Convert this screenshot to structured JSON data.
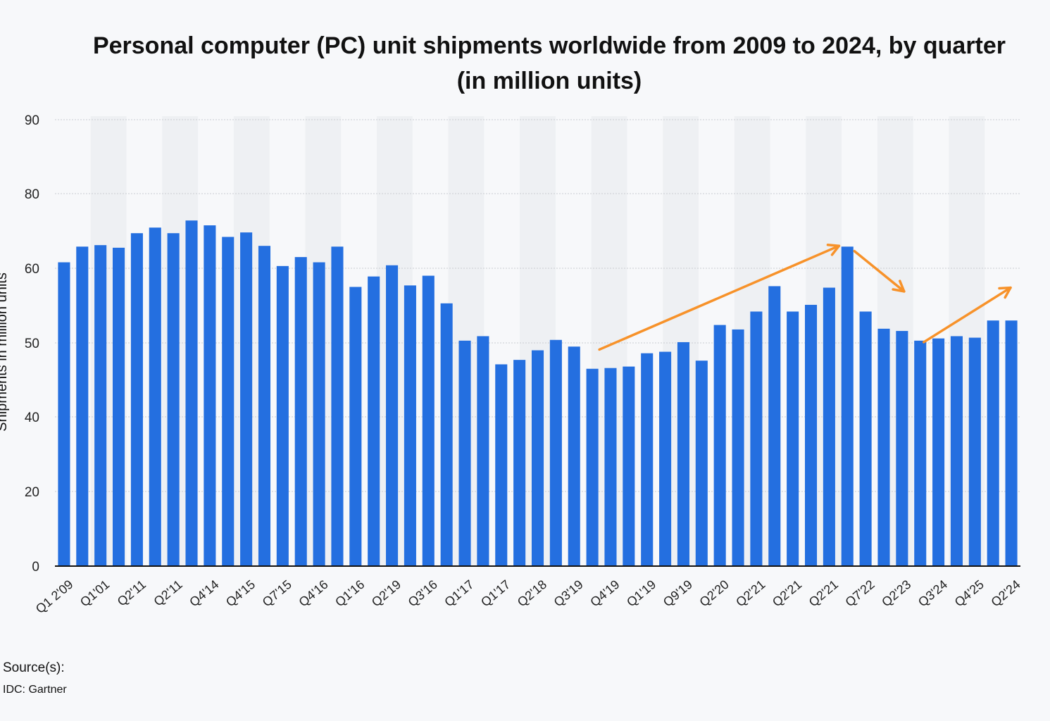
{
  "chart_data": {
    "type": "bar",
    "title": "Personal computer (PC) unit shipments worldwide from 2009 to 2024, by quarter (in million units)",
    "title_lines": [
      "Personal computer (PC) unit shipments worldwide from 2009 to 2024, by quarter",
      "(in million units)"
    ],
    "ylabel": "Shipments in million units",
    "xlabel": "",
    "y_ticks": [
      0,
      20,
      40,
      50,
      60,
      80,
      90
    ],
    "x_tick_labels": [
      "Q1 2'09",
      "Q1'01",
      "Q2'11",
      "Q2'11",
      "Q4'14",
      "Q4'15",
      "Q7'15",
      "Q4'16",
      "Q1'16",
      "Q2'19",
      "Q3'16",
      "Q1'17",
      "Q1'17",
      "Q2'18",
      "Q3'19",
      "Q4'19",
      "Q1'19",
      "Q9'19",
      "Q2'20",
      "Q2'21",
      "Q2'21",
      "Q2'21",
      "Q7'22",
      "Q2'23",
      "Q3'24",
      "Q4'25",
      "Q2'24"
    ],
    "values": [
      61.6,
      65.8,
      66.2,
      65.5,
      69.4,
      70.9,
      69.4,
      72.8,
      71.5,
      68.4,
      69.6,
      66.0,
      60.6,
      63.0,
      61.6,
      65.8,
      57.5,
      58.9,
      60.8,
      57.7,
      59.0,
      55.3,
      50.3,
      50.9,
      47.1,
      47.7,
      49.0,
      50.4,
      49.5,
      46.5,
      46.6,
      46.8,
      48.6,
      48.8,
      50.1,
      47.6,
      52.4,
      51.8,
      54.2,
      57.6,
      54.2,
      55.1,
      57.4,
      65.8,
      54.2,
      51.9,
      51.6,
      50.3,
      50.6,
      50.9,
      50.7,
      53.0,
      53.0
    ],
    "ylim": [
      0,
      90
    ],
    "grid": true,
    "legend": "none",
    "colors": {
      "bar": "#246fe0",
      "annotation": "#f7922a"
    },
    "annotations": [
      "arrow-up-trend",
      "arrow-down-trend",
      "arrow-up-trend"
    ]
  },
  "source": {
    "label": "Source(s):",
    "value": "IDC: Gartner"
  }
}
